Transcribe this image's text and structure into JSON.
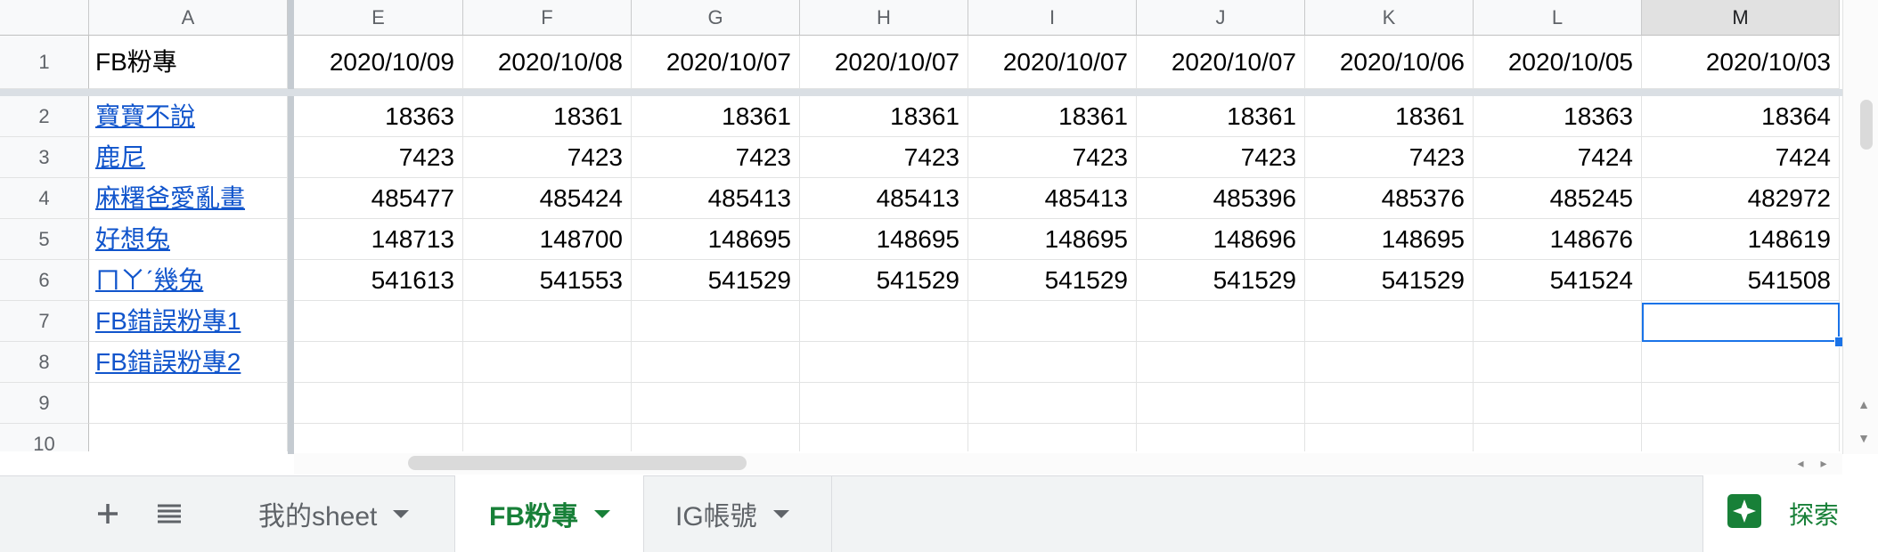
{
  "columns": [
    "A",
    "E",
    "F",
    "G",
    "H",
    "I",
    "J",
    "K",
    "L",
    "M"
  ],
  "selected_column": "M",
  "header_row": {
    "number": "1",
    "label": "FB粉專",
    "dates": [
      "2020/10/09",
      "2020/10/08",
      "2020/10/07",
      "2020/10/07",
      "2020/10/07",
      "2020/10/07",
      "2020/10/06",
      "2020/10/05",
      "2020/10/03"
    ]
  },
  "rows": [
    {
      "number": "2",
      "name": "寶寶不說",
      "values": [
        "18363",
        "18361",
        "18361",
        "18361",
        "18361",
        "18361",
        "18361",
        "18363",
        "18364"
      ]
    },
    {
      "number": "3",
      "name": "鹿尼",
      "values": [
        "7423",
        "7423",
        "7423",
        "7423",
        "7423",
        "7423",
        "7423",
        "7424",
        "7424"
      ]
    },
    {
      "number": "4",
      "name": "麻糬爸愛亂畫",
      "values": [
        "485477",
        "485424",
        "485413",
        "485413",
        "485413",
        "485396",
        "485376",
        "485245",
        "482972"
      ]
    },
    {
      "number": "5",
      "name": "好想兔",
      "values": [
        "148713",
        "148700",
        "148695",
        "148695",
        "148695",
        "148696",
        "148695",
        "148676",
        "148619"
      ]
    },
    {
      "number": "6",
      "name": "ㄇㄚˊ幾兔",
      "values": [
        "541613",
        "541553",
        "541529",
        "541529",
        "541529",
        "541529",
        "541529",
        "541524",
        "541508"
      ]
    },
    {
      "number": "7",
      "name": "FB錯誤粉專1",
      "values": [
        "",
        "",
        "",
        "",
        "",
        "",
        "",
        "",
        ""
      ]
    },
    {
      "number": "8",
      "name": "FB錯誤粉專2",
      "values": [
        "",
        "",
        "",
        "",
        "",
        "",
        "",
        "",
        ""
      ]
    },
    {
      "number": "9",
      "name": "",
      "values": [
        "",
        "",
        "",
        "",
        "",
        "",
        "",
        "",
        ""
      ]
    },
    {
      "number": "10",
      "name": "",
      "values": [
        "",
        "",
        "",
        "",
        "",
        "",
        "",
        "",
        ""
      ]
    }
  ],
  "tabs": [
    {
      "label": "我的sheet",
      "active": false
    },
    {
      "label": "FB粉專",
      "active": true
    },
    {
      "label": "IG帳號",
      "active": false
    }
  ],
  "explore": {
    "label": "探索",
    "icon": "explore-star-icon"
  },
  "toolbar": {
    "add_icon": "plus-icon",
    "list_icon": "all-sheets-icon"
  },
  "colors": {
    "link": "#1155cc",
    "selection": "#1a73e8",
    "active_tab": "#188038"
  }
}
